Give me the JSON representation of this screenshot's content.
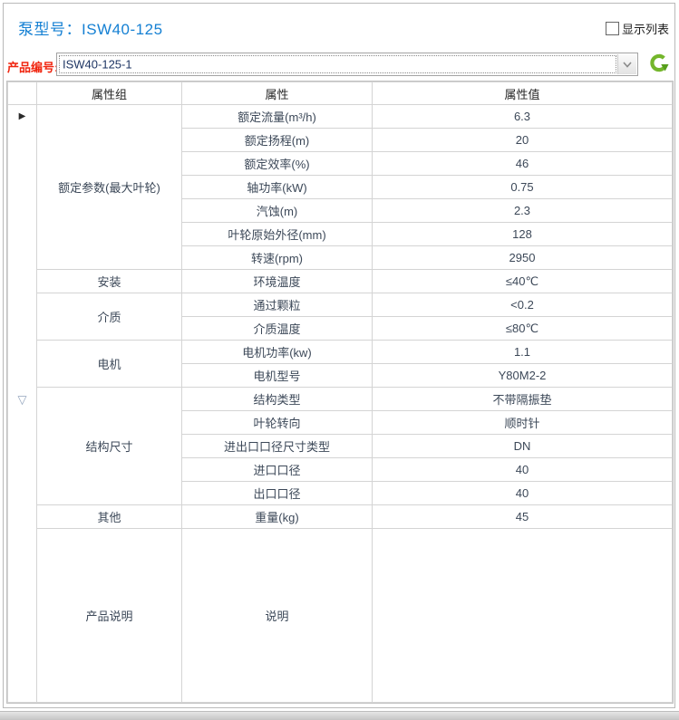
{
  "header": {
    "title": "泵型号：ISW40-125",
    "show_list_label": "显示列表",
    "show_list_checked": false
  },
  "product": {
    "label": "产品编号:",
    "value": "ISW40-125-1"
  },
  "icons": {
    "refresh": "refresh-icon",
    "dropdown": "chevron-down-icon",
    "current_row_marker": "▶",
    "expanded_row_marker": "▽"
  },
  "colors": {
    "title_blue": "#1580d3",
    "label_red": "#f0250f",
    "combo_text_navy": "#1e3563",
    "refresh_green": "#74b62c",
    "grid_border": "#d4d4d4"
  },
  "table": {
    "columns": [
      "属性组",
      "属性",
      "属性值"
    ],
    "groups": [
      {
        "name": "额定参数(最大叶轮)",
        "rows": [
          [
            "额定流量(m³/h)",
            "6.3"
          ],
          [
            "额定扬程(m)",
            "20"
          ],
          [
            "额定效率(%)",
            "46"
          ],
          [
            "轴功率(kW)",
            "0.75"
          ],
          [
            "汽蚀(m)",
            "2.3"
          ],
          [
            "叶轮原始外径(mm)",
            "128"
          ],
          [
            "转速(rpm)",
            "2950"
          ]
        ]
      },
      {
        "name": "安装",
        "rows": [
          [
            "环境温度",
            "≤40℃"
          ]
        ]
      },
      {
        "name": "介质",
        "rows": [
          [
            "通过颗粒",
            "<0.2"
          ],
          [
            "介质温度",
            "≤80℃"
          ]
        ]
      },
      {
        "name": "电机",
        "rows": [
          [
            "电机功率(kw)",
            "1.1"
          ],
          [
            "电机型号",
            "Y80M2-2"
          ]
        ]
      },
      {
        "name": "结构尺寸",
        "rows": [
          [
            "结构类型",
            "不带隔振垫"
          ],
          [
            "叶轮转向",
            "顺时针"
          ],
          [
            "进出口口径尺寸类型",
            "DN"
          ],
          [
            "进口口径",
            "40"
          ],
          [
            "出口口径",
            "40"
          ]
        ]
      },
      {
        "name": "其他",
        "rows": [
          [
            "重量(kg)",
            "45"
          ]
        ]
      },
      {
        "name": "产品说明",
        "tall": true,
        "rows": [
          [
            "说明",
            ""
          ]
        ]
      }
    ]
  }
}
